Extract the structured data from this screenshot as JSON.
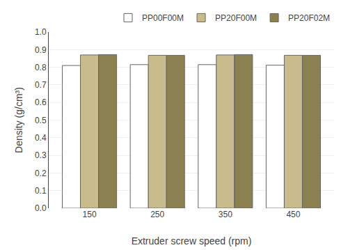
{
  "chart_data": {
    "type": "bar",
    "categories": [
      150,
      250,
      350,
      450
    ],
    "series": [
      {
        "name": "PP00F00M",
        "color": "#ffffff",
        "values": [
          0.81,
          0.815,
          0.815,
          0.812
        ]
      },
      {
        "name": "PP20F00M",
        "color": "#c8bc8c",
        "values": [
          0.87,
          0.868,
          0.87,
          0.868
        ]
      },
      {
        "name": "PP20F02M",
        "color": "#8b8050",
        "values": [
          0.872,
          0.868,
          0.872,
          0.868
        ]
      }
    ],
    "xlabel": "Extruder screw speed (rpm)",
    "ylabel": "Density (g/cm³)",
    "ylim": [
      0.0,
      1.0
    ],
    "yticks": [
      {
        "value": 0.0,
        "label": "0.0"
      },
      0.1,
      0.2,
      0.3,
      0.4,
      0.5,
      0.6,
      0.7,
      0.8,
      0.9,
      {
        "value": 1.0,
        "label": "1.0"
      }
    ],
    "grid": true,
    "legend": "upper right"
  }
}
